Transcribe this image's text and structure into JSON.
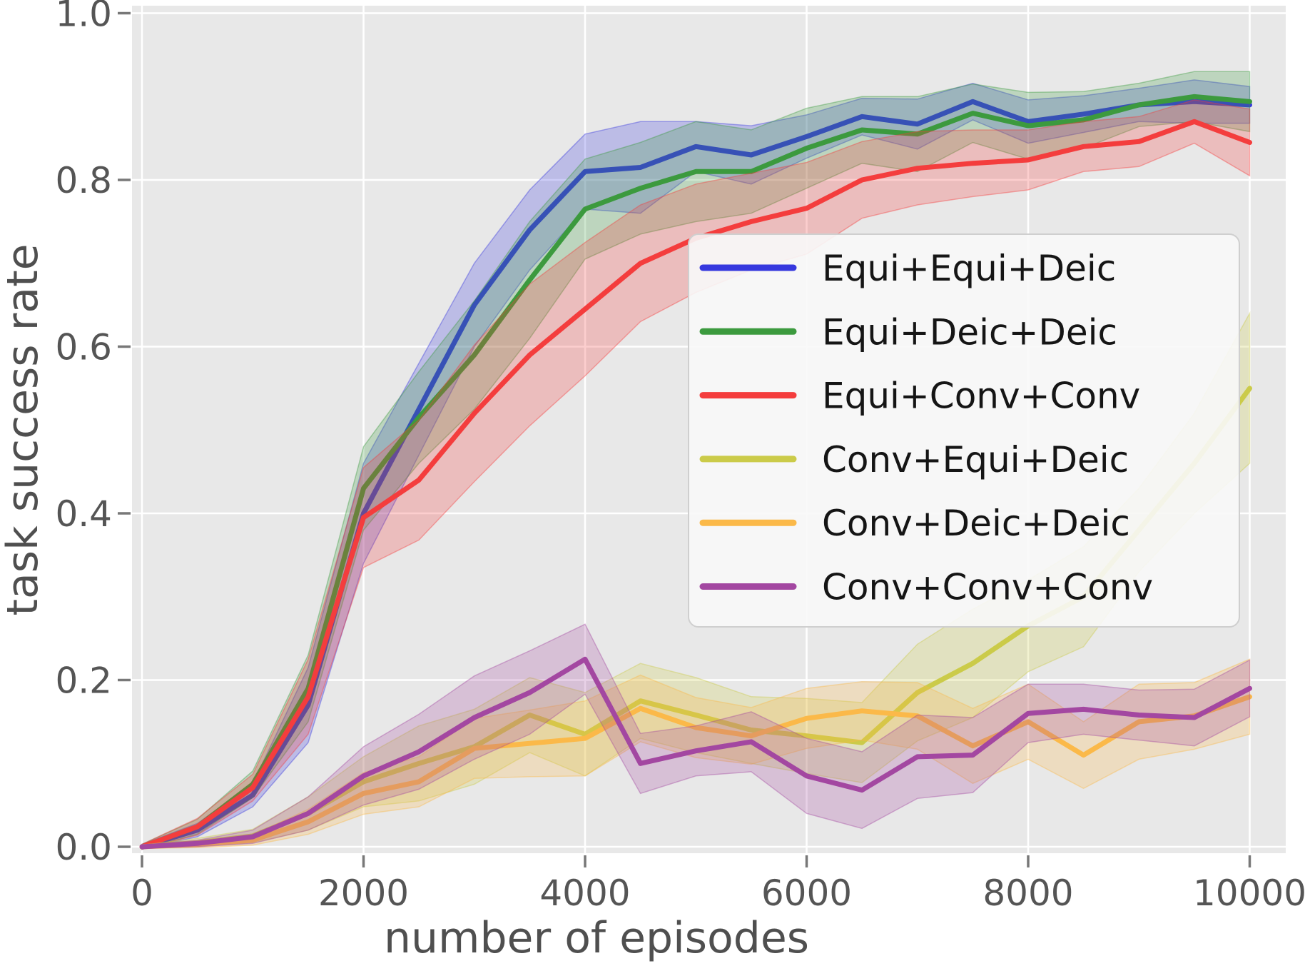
{
  "chart_data": {
    "type": "line",
    "title": "",
    "xlabel": "number of episodes",
    "ylabel": "task success rate",
    "xlim": [
      -90,
      10330
    ],
    "ylim": [
      -0.008,
      1.009
    ],
    "grid": true,
    "plot_bg_color": "#e8e8e8",
    "gridline_color": "#ffffff",
    "tick_color": "#787878",
    "legend_position": "center-right inside, semi-transparent white box",
    "xticks": {
      "values": [
        0,
        2000,
        4000,
        6000,
        8000,
        10000
      ],
      "labels": [
        "0",
        "2000",
        "4000",
        "6000",
        "8000",
        "10000"
      ]
    },
    "yticks": {
      "values": [
        0.0,
        0.2,
        0.4,
        0.6,
        0.8,
        1.0
      ],
      "labels": [
        "0.0",
        "0.2",
        "0.4",
        "0.6",
        "0.8",
        "1.0"
      ]
    },
    "x": [
      0,
      500,
      1000,
      1500,
      2000,
      2500,
      3000,
      3500,
      4000,
      4500,
      5000,
      5500,
      6000,
      6500,
      7000,
      7500,
      8000,
      8500,
      9000,
      9500,
      10000
    ],
    "series": [
      {
        "name": "Equi+Equi+Deic",
        "color": "#3638de",
        "values": [
          0.0,
          0.02,
          0.062,
          0.17,
          0.4,
          0.525,
          0.65,
          0.74,
          0.81,
          0.815,
          0.84,
          0.83,
          0.852,
          0.876,
          0.867,
          0.894,
          0.87,
          0.879,
          0.89,
          0.894,
          0.89
        ],
        "band_halfwidth": [
          0.003,
          0.008,
          0.014,
          0.045,
          0.06,
          0.055,
          0.05,
          0.048,
          0.045,
          0.055,
          0.03,
          0.035,
          0.026,
          0.022,
          0.03,
          0.022,
          0.026,
          0.022,
          0.02,
          0.026,
          0.022
        ]
      },
      {
        "name": "Equi+Deic+Deic",
        "color": "#3c9a3e",
        "values": [
          0.0,
          0.024,
          0.075,
          0.19,
          0.43,
          0.515,
          0.59,
          0.68,
          0.765,
          0.79,
          0.81,
          0.81,
          0.838,
          0.86,
          0.855,
          0.88,
          0.865,
          0.872,
          0.89,
          0.9,
          0.894
        ],
        "band_halfwidth": [
          0.003,
          0.009,
          0.016,
          0.04,
          0.05,
          0.055,
          0.065,
          0.07,
          0.06,
          0.055,
          0.06,
          0.05,
          0.048,
          0.04,
          0.045,
          0.035,
          0.04,
          0.034,
          0.026,
          0.03,
          0.036
        ]
      },
      {
        "name": "Equi+Conv+Conv",
        "color": "#f43d3d",
        "values": [
          0.0,
          0.024,
          0.071,
          0.18,
          0.395,
          0.44,
          0.52,
          0.59,
          0.645,
          0.7,
          0.73,
          0.75,
          0.766,
          0.8,
          0.814,
          0.82,
          0.824,
          0.84,
          0.846,
          0.87,
          0.845
        ],
        "band_halfwidth": [
          0.003,
          0.01,
          0.016,
          0.045,
          0.06,
          0.072,
          0.082,
          0.085,
          0.08,
          0.07,
          0.065,
          0.058,
          0.055,
          0.046,
          0.044,
          0.04,
          0.036,
          0.03,
          0.03,
          0.026,
          0.04
        ]
      },
      {
        "name": "Conv+Equi+Deic",
        "color": "#cbcb49",
        "values": [
          0.0,
          0.005,
          0.013,
          0.04,
          0.078,
          0.1,
          0.12,
          0.158,
          0.135,
          0.175,
          0.158,
          0.14,
          0.133,
          0.125,
          0.185,
          0.22,
          0.265,
          0.3,
          0.38,
          0.46,
          0.55
        ],
        "band_halfwidth": [
          0.002,
          0.005,
          0.008,
          0.02,
          0.03,
          0.045,
          0.045,
          0.045,
          0.05,
          0.045,
          0.045,
          0.04,
          0.045,
          0.048,
          0.058,
          0.065,
          0.055,
          0.06,
          0.05,
          0.06,
          0.09
        ]
      },
      {
        "name": "Conv+Deic+Deic",
        "color": "#fbb949",
        "values": [
          0.0,
          0.003,
          0.008,
          0.03,
          0.064,
          0.078,
          0.118,
          0.124,
          0.13,
          0.166,
          0.143,
          0.133,
          0.154,
          0.163,
          0.157,
          0.121,
          0.15,
          0.11,
          0.15,
          0.157,
          0.18
        ],
        "band_halfwidth": [
          0.002,
          0.004,
          0.006,
          0.015,
          0.025,
          0.03,
          0.036,
          0.04,
          0.045,
          0.04,
          0.036,
          0.034,
          0.036,
          0.035,
          0.04,
          0.045,
          0.045,
          0.04,
          0.045,
          0.04,
          0.045
        ]
      },
      {
        "name": "Conv+Conv+Conv",
        "color": "#a347a1",
        "values": [
          0.0,
          0.004,
          0.012,
          0.04,
          0.085,
          0.114,
          0.155,
          0.185,
          0.225,
          0.1,
          0.115,
          0.126,
          0.085,
          0.068,
          0.108,
          0.11,
          0.16,
          0.165,
          0.158,
          0.155,
          0.19
        ],
        "band_halfwidth": [
          0.002,
          0.004,
          0.008,
          0.02,
          0.035,
          0.045,
          0.05,
          0.05,
          0.042,
          0.036,
          0.03,
          0.036,
          0.045,
          0.046,
          0.05,
          0.045,
          0.035,
          0.03,
          0.03,
          0.034,
          0.034
        ]
      }
    ]
  }
}
